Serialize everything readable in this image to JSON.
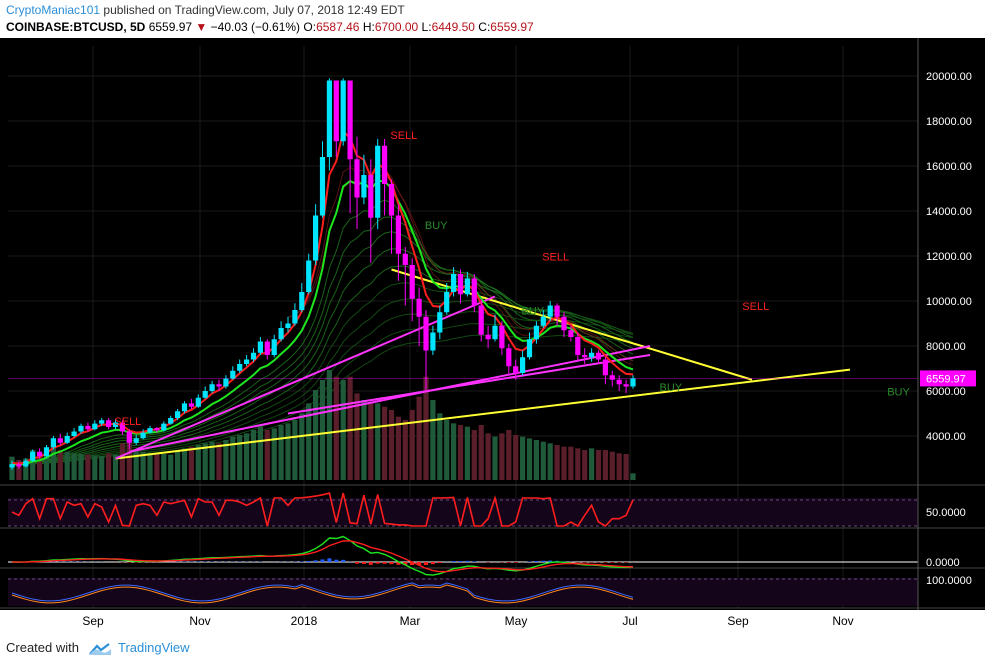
{
  "header": {
    "author": "CryptoManiac101",
    "published": "published on TradingView.com, July 07, 2018 12:49 EDT",
    "symbol": "COINBASE:BTCUSD, 5D",
    "last": "6559.97",
    "change": "−40.03 (−0.61%)",
    "open_label": "O:",
    "open": "6587.46",
    "high_label": "H:",
    "high": "6700.00",
    "low_label": "L:",
    "low": "6449.50",
    "close_label": "C:",
    "close": "6559.97"
  },
  "footer": {
    "created_with": "Created with",
    "brand": "TradingView"
  },
  "colors": {
    "background": "#000000",
    "up": "#00e5ff",
    "down": "#ff00ff",
    "ema_fast": "#ff1e1e",
    "ema_slow": "#1ee61e",
    "trend_yellow": "#ffff33",
    "trend_magenta": "#ff33ff"
  },
  "chart_data": {
    "type": "candlestick",
    "y_axis": {
      "ylim": [
        2000,
        21000
      ],
      "ticks": [
        "20000.00",
        "18000.00",
        "16000.00",
        "14000.00",
        "12000.00",
        "10000.00",
        "8000.00",
        "6000.00",
        "4000.00"
      ]
    },
    "x_axis": {
      "ticks": [
        "Sep",
        "Nov",
        "2018",
        "Mar",
        "May",
        "Jul",
        "Sep",
        "Nov"
      ]
    },
    "last_price_label": "6559.97",
    "annotations": [
      {
        "text": "SELL",
        "date_index": 16,
        "price": 4500,
        "color": "#ff2020"
      },
      {
        "text": "SELL",
        "date_index": 56,
        "price": 17200,
        "color": "#ff2020"
      },
      {
        "text": "SELL",
        "date_index": 78,
        "price": 11800,
        "color": "#ff2020"
      },
      {
        "text": "SELL",
        "date_index": 107,
        "price": 9600,
        "color": "#ff2020"
      },
      {
        "text": "BUY",
        "date_index": 61,
        "price": 13200,
        "color": "#2a8a2a"
      },
      {
        "text": "BUY",
        "date_index": 75,
        "price": 9400,
        "color": "#2a8a2a"
      },
      {
        "text": "BUY",
        "date_index": 95,
        "price": 6000,
        "color": "#2a8a2a"
      },
      {
        "text": "BUY",
        "date_index": 128,
        "price": 5800,
        "color": "#2a8a2a"
      }
    ],
    "candles": [
      [
        2600,
        2750,
        2500,
        2900
      ],
      [
        2750,
        2650,
        2550,
        2850
      ],
      [
        2650,
        2900,
        2600,
        3000
      ],
      [
        2900,
        3300,
        2850,
        3400
      ],
      [
        3300,
        3100,
        3000,
        3450
      ],
      [
        3100,
        3500,
        3050,
        3600
      ],
      [
        3500,
        3900,
        3400,
        4000
      ],
      [
        3900,
        3700,
        3600,
        4100
      ],
      [
        3700,
        4000,
        3650,
        4150
      ],
      [
        4000,
        4200,
        3950,
        4350
      ],
      [
        4200,
        4450,
        4100,
        4550
      ],
      [
        4450,
        4300,
        4200,
        4600
      ],
      [
        4300,
        4550,
        4250,
        4700
      ],
      [
        4550,
        4700,
        4450,
        4800
      ],
      [
        4700,
        4400,
        4300,
        4800
      ],
      [
        4400,
        4600,
        4300,
        4750
      ],
      [
        4600,
        4200,
        4050,
        4700
      ],
      [
        4200,
        3700,
        3400,
        4300
      ],
      [
        3700,
        3900,
        3600,
        4050
      ],
      [
        3900,
        4150,
        3850,
        4300
      ],
      [
        4150,
        4350,
        4100,
        4450
      ],
      [
        4350,
        4250,
        4150,
        4400
      ],
      [
        4250,
        4550,
        4200,
        4650
      ],
      [
        4550,
        4800,
        4500,
        4900
      ],
      [
        4800,
        5100,
        4700,
        5200
      ],
      [
        5100,
        5450,
        5000,
        5550
      ],
      [
        5450,
        5300,
        5200,
        5650
      ],
      [
        5300,
        5700,
        5250,
        5850
      ],
      [
        5700,
        6000,
        5650,
        6200
      ],
      [
        6000,
        6300,
        5900,
        6450
      ],
      [
        6300,
        6200,
        6000,
        6500
      ],
      [
        6200,
        6550,
        6100,
        6700
      ],
      [
        6550,
        6900,
        6500,
        7100
      ],
      [
        6900,
        7200,
        6800,
        7400
      ],
      [
        7200,
        7400,
        7100,
        7600
      ],
      [
        7400,
        7700,
        7300,
        7900
      ],
      [
        7700,
        8200,
        7600,
        8400
      ],
      [
        8200,
        7600,
        7400,
        8300
      ],
      [
        7600,
        8300,
        7500,
        8500
      ],
      [
        8300,
        8800,
        8200,
        9100
      ],
      [
        8800,
        9000,
        8600,
        9300
      ],
      [
        9000,
        9600,
        8900,
        9900
      ],
      [
        9600,
        10400,
        9500,
        10800
      ],
      [
        10400,
        11800,
        10300,
        12100
      ],
      [
        11800,
        13800,
        11600,
        14300
      ],
      [
        13800,
        16400,
        13700,
        17100
      ],
      [
        16400,
        19800,
        15800,
        19900
      ],
      [
        19800,
        17100,
        16400,
        19800
      ],
      [
        17100,
        19800,
        16900,
        19900
      ],
      [
        19800,
        16300,
        13900,
        19800
      ],
      [
        16300,
        14600,
        13200,
        17300
      ],
      [
        14600,
        15600,
        14300,
        16500
      ],
      [
        15600,
        13700,
        11700,
        16300
      ],
      [
        13700,
        16900,
        13200,
        17200
      ],
      [
        16900,
        15200,
        13800,
        17200
      ],
      [
        15200,
        13800,
        12100,
        15400
      ],
      [
        13800,
        12100,
        10900,
        14300
      ],
      [
        12100,
        11600,
        9800,
        12400
      ],
      [
        11600,
        10100,
        9100,
        11900
      ],
      [
        10100,
        9300,
        8000,
        10600
      ],
      [
        9300,
        7800,
        6000,
        9600
      ],
      [
        7800,
        8600,
        7600,
        8900
      ],
      [
        8600,
        9500,
        8300,
        9800
      ],
      [
        9500,
        10400,
        9400,
        10800
      ],
      [
        10400,
        11200,
        10200,
        11500
      ],
      [
        11200,
        10300,
        9900,
        11400
      ],
      [
        10300,
        11000,
        10200,
        11300
      ],
      [
        11000,
        9800,
        9500,
        11200
      ],
      [
        9800,
        8500,
        8200,
        10100
      ],
      [
        8500,
        8300,
        7900,
        8900
      ],
      [
        8300,
        8900,
        8200,
        9400
      ],
      [
        8900,
        7900,
        7600,
        9100
      ],
      [
        7900,
        7100,
        6700,
        8100
      ],
      [
        7100,
        6800,
        6500,
        7400
      ],
      [
        6800,
        7500,
        6700,
        7800
      ],
      [
        7500,
        8300,
        7400,
        8600
      ],
      [
        8300,
        8900,
        8100,
        9100
      ],
      [
        8900,
        9300,
        8800,
        9600
      ],
      [
        9300,
        9800,
        9100,
        10000
      ],
      [
        9800,
        9300,
        8900,
        9900
      ],
      [
        9300,
        8700,
        8400,
        9500
      ],
      [
        8700,
        8400,
        8200,
        8900
      ],
      [
        8400,
        7600,
        7300,
        8600
      ],
      [
        7600,
        7500,
        7200,
        7900
      ],
      [
        7500,
        7700,
        7300,
        7900
      ],
      [
        7700,
        7400,
        7200,
        7800
      ],
      [
        7400,
        6700,
        6300,
        7500
      ],
      [
        6700,
        6500,
        6200,
        6900
      ],
      [
        6500,
        6300,
        6000,
        6700
      ],
      [
        6300,
        6200,
        5900,
        6500
      ],
      [
        6200,
        6560,
        6100,
        6700
      ]
    ],
    "volume": [
      700,
      600,
      650,
      900,
      800,
      750,
      1000,
      900,
      850,
      800,
      780,
      760,
      740,
      720,
      800,
      760,
      1100,
      1300,
      900,
      850,
      820,
      800,
      780,
      760,
      900,
      950,
      1000,
      1050,
      1100,
      1150,
      1100,
      1200,
      1300,
      1350,
      1400,
      1500,
      1600,
      1500,
      1550,
      1650,
      1700,
      1800,
      2000,
      2300,
      2700,
      3000,
      3300,
      3100,
      3000,
      3100,
      2600,
      2400,
      2300,
      2300,
      2200,
      2100,
      1900,
      1800,
      2100,
      2500,
      3100,
      2400,
      2000,
      1800,
      1700,
      1650,
      1600,
      1500,
      1650,
      1400,
      1300,
      1400,
      1500,
      1350,
      1300,
      1250,
      1200,
      1150,
      1100,
      1050,
      1000,
      1000,
      950,
      900,
      950,
      900,
      900,
      850,
      800,
      780,
      200
    ],
    "rsi": {
      "levels": [
        "50.0000"
      ]
    },
    "macd": {
      "levels": [
        "0.0000"
      ]
    },
    "stoch": {
      "levels": [
        "100.0000"
      ]
    }
  }
}
